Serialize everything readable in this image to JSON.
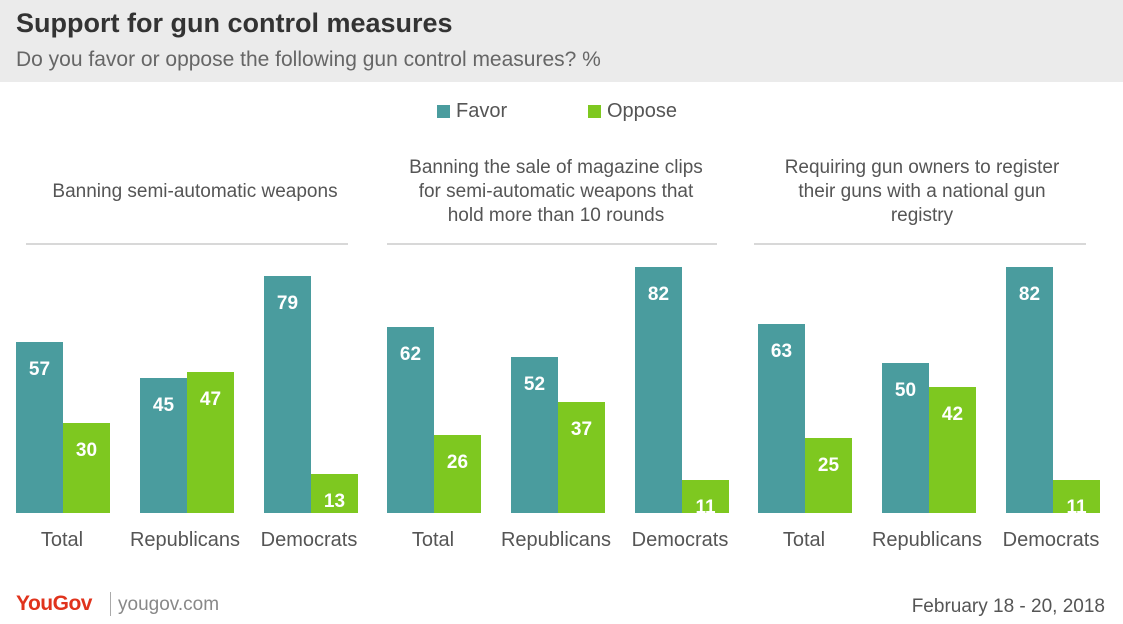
{
  "header": {
    "title": "Support for gun control measures",
    "subtitle": "Do you favor or oppose the following gun control measures? %"
  },
  "legend": [
    {
      "label": "Favor",
      "color": "#4a9c9e"
    },
    {
      "label": "Oppose",
      "color": "#7ec820"
    }
  ],
  "footer": {
    "logo": "YouGov",
    "site": "yougov.com",
    "date": "February 18 - 20, 2018"
  },
  "chart_data": {
    "type": "bar",
    "ylim": [
      0,
      100
    ],
    "series_names": [
      "Favor",
      "Oppose"
    ],
    "colors": {
      "Favor": "#4a9c9e",
      "Oppose": "#7ec820"
    },
    "panels": [
      {
        "title": [
          "Banning semi-automatic weapons"
        ],
        "categories": [
          "Total",
          "Republicans",
          "Democrats"
        ],
        "series": [
          {
            "name": "Favor",
            "values": [
              57,
              45,
              79
            ]
          },
          {
            "name": "Oppose",
            "values": [
              30,
              47,
              13
            ]
          }
        ]
      },
      {
        "title": [
          "Banning the sale of magazine clips",
          "for semi-automatic weapons that",
          "hold more than 10 rounds"
        ],
        "categories": [
          "Total",
          "Republicans",
          "Democrats"
        ],
        "series": [
          {
            "name": "Favor",
            "values": [
              62,
              52,
              82
            ]
          },
          {
            "name": "Oppose",
            "values": [
              26,
              37,
              11
            ]
          }
        ]
      },
      {
        "title": [
          "Requiring gun owners to register",
          "their guns with a national gun",
          "registry"
        ],
        "categories": [
          "Total",
          "Republicans",
          "Democrats"
        ],
        "series": [
          {
            "name": "Favor",
            "values": [
              63,
              50,
              82
            ]
          },
          {
            "name": "Oppose",
            "values": [
              25,
              42,
              11
            ]
          }
        ]
      }
    ]
  }
}
